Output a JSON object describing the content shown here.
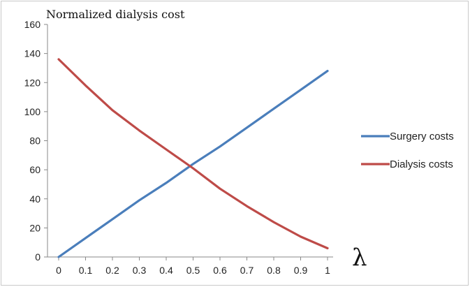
{
  "chart_data": {
    "type": "line",
    "title": "Normalized dialysis cost",
    "xlabel": "λ",
    "ylabel": "",
    "xlim": [
      0,
      1
    ],
    "ylim": [
      0,
      160
    ],
    "x": [
      0,
      0.1,
      0.2,
      0.3,
      0.4,
      0.5,
      0.6,
      0.7,
      0.8,
      0.9,
      1.0
    ],
    "x_tick_labels": [
      "0",
      "0.1",
      "0.2",
      "0.3",
      "0.4",
      "0.5",
      "0.6",
      "0.7",
      "0.8",
      "0.9",
      "1"
    ],
    "y_ticks": [
      0,
      20,
      40,
      60,
      80,
      100,
      120,
      140,
      160
    ],
    "grid": false,
    "legend_position": "right",
    "series": [
      {
        "name": "Surgery costs",
        "color": "#4a7ebb",
        "values": [
          0,
          13,
          26,
          39,
          51,
          64,
          76,
          89,
          102,
          115,
          128
        ]
      },
      {
        "name": "Dialysis costs",
        "color": "#be4b48",
        "values": [
          136,
          118,
          101,
          87,
          74,
          61,
          47,
          35,
          24,
          14,
          6
        ]
      }
    ]
  }
}
